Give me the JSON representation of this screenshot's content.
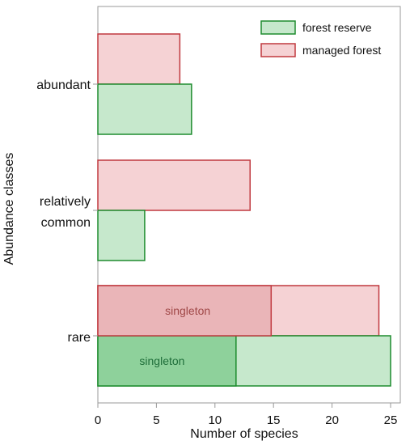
{
  "chart_data": {
    "type": "bar",
    "orientation": "horizontal",
    "xlabel": "Number of species",
    "ylabel": "Abundance classes",
    "xlim": [
      0,
      25
    ],
    "xticks": [
      0,
      5,
      10,
      15,
      20,
      25
    ],
    "grid": false,
    "legend": "top-right",
    "categories": [
      {
        "lines": [
          "abundant"
        ]
      },
      {
        "lines": [
          "relatively",
          "common"
        ]
      },
      {
        "lines": [
          "rare"
        ]
      }
    ],
    "series": [
      {
        "name": "forest reserve",
        "values": [
          8,
          4,
          25
        ],
        "fill": "#c6e8cc",
        "stroke": "#1e8c2e"
      },
      {
        "name": "managed forest",
        "values": [
          7,
          13,
          24
        ],
        "fill": "#f5d2d4",
        "stroke": "#c0393f"
      }
    ],
    "segments": [
      {
        "series": 0,
        "category": 2,
        "from": 0,
        "to": 11.8,
        "label": "singleton",
        "fill": "#8ed19b",
        "text_color": "#1f6e3a"
      },
      {
        "series": 1,
        "category": 2,
        "from": 0,
        "to": 14.8,
        "label": "singleton",
        "fill": "#eab5b8",
        "text_color": "#a04848"
      }
    ]
  }
}
